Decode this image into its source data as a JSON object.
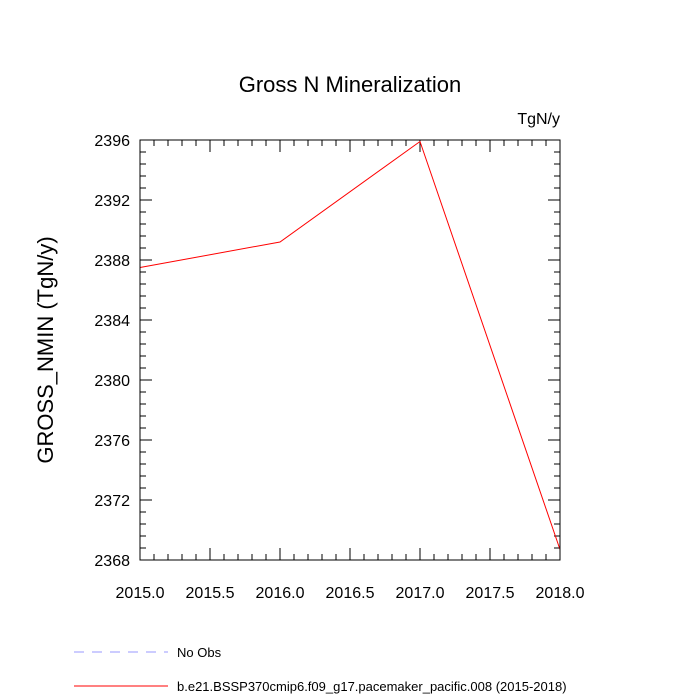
{
  "chart_data": {
    "type": "line",
    "title": "Gross N Mineralization",
    "units": "TgN/y",
    "xlabel": "",
    "ylabel": "GROSS_NMIN  (TgN/y)",
    "xlim": [
      2015.0,
      2018.0
    ],
    "ylim": [
      2368,
      2396
    ],
    "xticks": [
      2015.0,
      2015.5,
      2016.0,
      2016.5,
      2017.0,
      2017.5,
      2018.0
    ],
    "xtick_labels": [
      "2015.0",
      "2015.5",
      "2016.0",
      "2016.5",
      "2017.0",
      "2017.5",
      "2018.0"
    ],
    "yticks": [
      2368,
      2372,
      2376,
      2380,
      2384,
      2388,
      2392,
      2396
    ],
    "ytick_labels": [
      "2368",
      "2372",
      "2376",
      "2380",
      "2384",
      "2388",
      "2392",
      "2396"
    ],
    "series": [
      {
        "name": "b.e21.BSSP370cmip6.f09_g17.pacemaker_pacific.008 (2015-2018)",
        "color": "#ff0000",
        "style": "solid",
        "x": [
          2015.0,
          2016.0,
          2017.0,
          2018.0
        ],
        "y": [
          2387.5,
          2389.2,
          2395.9,
          2368.7
        ]
      }
    ],
    "legend": [
      {
        "label": "No Obs",
        "color": "#9999ff",
        "style": "dashed"
      },
      {
        "label": "b.e21.BSSP370cmip6.f09_g17.pacemaker_pacific.008 (2015-2018)",
        "color": "#ff0000",
        "style": "solid"
      }
    ],
    "legend_position": "bottom-left"
  }
}
